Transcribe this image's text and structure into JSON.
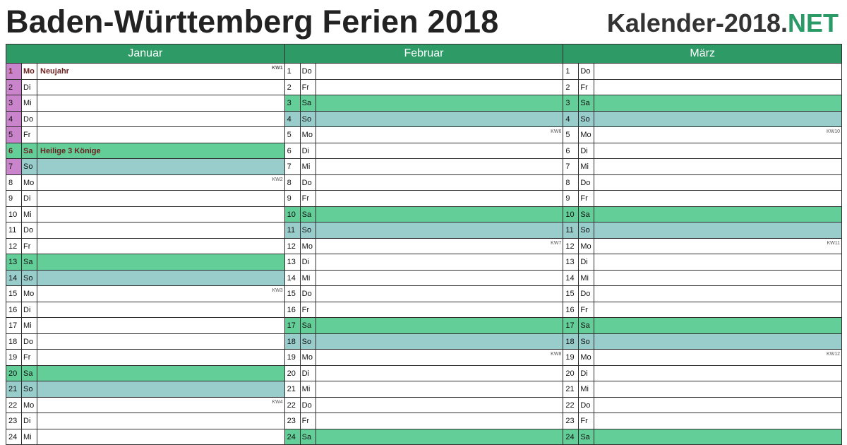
{
  "header": {
    "title": "Baden-Württemberg Ferien 2018",
    "brand_main": "Kalender-2018.",
    "brand_accent": "NET"
  },
  "colors": {
    "header_green": "#2e9a66",
    "saturday": "#64ce98",
    "sunday": "#99cdcb",
    "vacation": "#c984cc",
    "holiday_text": "#6b1f1f"
  },
  "months": [
    {
      "name": "Januar",
      "days": [
        {
          "num": "1",
          "name": "Mo",
          "note": "Neujahr",
          "kw": "KW1",
          "type": "hol",
          "vac": true
        },
        {
          "num": "2",
          "name": "Di",
          "note": "",
          "kw": "",
          "type": "",
          "vac": true
        },
        {
          "num": "3",
          "name": "Mi",
          "note": "",
          "kw": "",
          "type": "",
          "vac": true
        },
        {
          "num": "4",
          "name": "Do",
          "note": "",
          "kw": "",
          "type": "",
          "vac": true
        },
        {
          "num": "5",
          "name": "Fr",
          "note": "",
          "kw": "",
          "type": "",
          "vac": true
        },
        {
          "num": "6",
          "name": "Sa",
          "note": "Heilige 3 Könige",
          "kw": "",
          "type": "sat hol",
          "vac": false
        },
        {
          "num": "7",
          "name": "So",
          "note": "",
          "kw": "",
          "type": "sun",
          "vac": true
        },
        {
          "num": "8",
          "name": "Mo",
          "note": "",
          "kw": "KW2",
          "type": "",
          "vac": false
        },
        {
          "num": "9",
          "name": "Di",
          "note": "",
          "kw": "",
          "type": "",
          "vac": false
        },
        {
          "num": "10",
          "name": "Mi",
          "note": "",
          "kw": "",
          "type": "",
          "vac": false
        },
        {
          "num": "11",
          "name": "Do",
          "note": "",
          "kw": "",
          "type": "",
          "vac": false
        },
        {
          "num": "12",
          "name": "Fr",
          "note": "",
          "kw": "",
          "type": "",
          "vac": false
        },
        {
          "num": "13",
          "name": "Sa",
          "note": "",
          "kw": "",
          "type": "sat",
          "vac": false
        },
        {
          "num": "14",
          "name": "So",
          "note": "",
          "kw": "",
          "type": "sun",
          "vac": false
        },
        {
          "num": "15",
          "name": "Mo",
          "note": "",
          "kw": "KW3",
          "type": "",
          "vac": false
        },
        {
          "num": "16",
          "name": "Di",
          "note": "",
          "kw": "",
          "type": "",
          "vac": false
        },
        {
          "num": "17",
          "name": "Mi",
          "note": "",
          "kw": "",
          "type": "",
          "vac": false
        },
        {
          "num": "18",
          "name": "Do",
          "note": "",
          "kw": "",
          "type": "",
          "vac": false
        },
        {
          "num": "19",
          "name": "Fr",
          "note": "",
          "kw": "",
          "type": "",
          "vac": false
        },
        {
          "num": "20",
          "name": "Sa",
          "note": "",
          "kw": "",
          "type": "sat",
          "vac": false
        },
        {
          "num": "21",
          "name": "So",
          "note": "",
          "kw": "",
          "type": "sun",
          "vac": false
        },
        {
          "num": "22",
          "name": "Mo",
          "note": "",
          "kw": "KW4",
          "type": "",
          "vac": false
        },
        {
          "num": "23",
          "name": "Di",
          "note": "",
          "kw": "",
          "type": "",
          "vac": false
        },
        {
          "num": "24",
          "name": "Mi",
          "note": "",
          "kw": "",
          "type": "",
          "vac": false
        }
      ]
    },
    {
      "name": "Februar",
      "days": [
        {
          "num": "1",
          "name": "Do",
          "note": "",
          "kw": "",
          "type": "",
          "vac": false
        },
        {
          "num": "2",
          "name": "Fr",
          "note": "",
          "kw": "",
          "type": "",
          "vac": false
        },
        {
          "num": "3",
          "name": "Sa",
          "note": "",
          "kw": "",
          "type": "sat",
          "vac": false
        },
        {
          "num": "4",
          "name": "So",
          "note": "",
          "kw": "",
          "type": "sun",
          "vac": false
        },
        {
          "num": "5",
          "name": "Mo",
          "note": "",
          "kw": "KW6",
          "type": "",
          "vac": false
        },
        {
          "num": "6",
          "name": "Di",
          "note": "",
          "kw": "",
          "type": "",
          "vac": false
        },
        {
          "num": "7",
          "name": "Mi",
          "note": "",
          "kw": "",
          "type": "",
          "vac": false
        },
        {
          "num": "8",
          "name": "Do",
          "note": "",
          "kw": "",
          "type": "",
          "vac": false
        },
        {
          "num": "9",
          "name": "Fr",
          "note": "",
          "kw": "",
          "type": "",
          "vac": false
        },
        {
          "num": "10",
          "name": "Sa",
          "note": "",
          "kw": "",
          "type": "sat",
          "vac": false
        },
        {
          "num": "11",
          "name": "So",
          "note": "",
          "kw": "",
          "type": "sun",
          "vac": false
        },
        {
          "num": "12",
          "name": "Mo",
          "note": "",
          "kw": "KW7",
          "type": "",
          "vac": false
        },
        {
          "num": "13",
          "name": "Di",
          "note": "",
          "kw": "",
          "type": "",
          "vac": false
        },
        {
          "num": "14",
          "name": "Mi",
          "note": "",
          "kw": "",
          "type": "",
          "vac": false
        },
        {
          "num": "15",
          "name": "Do",
          "note": "",
          "kw": "",
          "type": "",
          "vac": false
        },
        {
          "num": "16",
          "name": "Fr",
          "note": "",
          "kw": "",
          "type": "",
          "vac": false
        },
        {
          "num": "17",
          "name": "Sa",
          "note": "",
          "kw": "",
          "type": "sat",
          "vac": false
        },
        {
          "num": "18",
          "name": "So",
          "note": "",
          "kw": "",
          "type": "sun",
          "vac": false
        },
        {
          "num": "19",
          "name": "Mo",
          "note": "",
          "kw": "KW8",
          "type": "",
          "vac": false
        },
        {
          "num": "20",
          "name": "Di",
          "note": "",
          "kw": "",
          "type": "",
          "vac": false
        },
        {
          "num": "21",
          "name": "Mi",
          "note": "",
          "kw": "",
          "type": "",
          "vac": false
        },
        {
          "num": "22",
          "name": "Do",
          "note": "",
          "kw": "",
          "type": "",
          "vac": false
        },
        {
          "num": "23",
          "name": "Fr",
          "note": "",
          "kw": "",
          "type": "",
          "vac": false
        },
        {
          "num": "24",
          "name": "Sa",
          "note": "",
          "kw": "",
          "type": "sat",
          "vac": false
        }
      ]
    },
    {
      "name": "März",
      "days": [
        {
          "num": "1",
          "name": "Do",
          "note": "",
          "kw": "",
          "type": "",
          "vac": false
        },
        {
          "num": "2",
          "name": "Fr",
          "note": "",
          "kw": "",
          "type": "",
          "vac": false
        },
        {
          "num": "3",
          "name": "Sa",
          "note": "",
          "kw": "",
          "type": "sat",
          "vac": false
        },
        {
          "num": "4",
          "name": "So",
          "note": "",
          "kw": "",
          "type": "sun",
          "vac": false
        },
        {
          "num": "5",
          "name": "Mo",
          "note": "",
          "kw": "KW10",
          "type": "",
          "vac": false
        },
        {
          "num": "6",
          "name": "Di",
          "note": "",
          "kw": "",
          "type": "",
          "vac": false
        },
        {
          "num": "7",
          "name": "Mi",
          "note": "",
          "kw": "",
          "type": "",
          "vac": false
        },
        {
          "num": "8",
          "name": "Do",
          "note": "",
          "kw": "",
          "type": "",
          "vac": false
        },
        {
          "num": "9",
          "name": "Fr",
          "note": "",
          "kw": "",
          "type": "",
          "vac": false
        },
        {
          "num": "10",
          "name": "Sa",
          "note": "",
          "kw": "",
          "type": "sat",
          "vac": false
        },
        {
          "num": "11",
          "name": "So",
          "note": "",
          "kw": "",
          "type": "sun",
          "vac": false
        },
        {
          "num": "12",
          "name": "Mo",
          "note": "",
          "kw": "KW11",
          "type": "",
          "vac": false
        },
        {
          "num": "13",
          "name": "Di",
          "note": "",
          "kw": "",
          "type": "",
          "vac": false
        },
        {
          "num": "14",
          "name": "Mi",
          "note": "",
          "kw": "",
          "type": "",
          "vac": false
        },
        {
          "num": "15",
          "name": "Do",
          "note": "",
          "kw": "",
          "type": "",
          "vac": false
        },
        {
          "num": "16",
          "name": "Fr",
          "note": "",
          "kw": "",
          "type": "",
          "vac": false
        },
        {
          "num": "17",
          "name": "Sa",
          "note": "",
          "kw": "",
          "type": "sat",
          "vac": false
        },
        {
          "num": "18",
          "name": "So",
          "note": "",
          "kw": "",
          "type": "sun",
          "vac": false
        },
        {
          "num": "19",
          "name": "Mo",
          "note": "",
          "kw": "KW12",
          "type": "",
          "vac": false
        },
        {
          "num": "20",
          "name": "Di",
          "note": "",
          "kw": "",
          "type": "",
          "vac": false
        },
        {
          "num": "21",
          "name": "Mi",
          "note": "",
          "kw": "",
          "type": "",
          "vac": false
        },
        {
          "num": "22",
          "name": "Do",
          "note": "",
          "kw": "",
          "type": "",
          "vac": false
        },
        {
          "num": "23",
          "name": "Fr",
          "note": "",
          "kw": "",
          "type": "",
          "vac": false
        },
        {
          "num": "24",
          "name": "Sa",
          "note": "",
          "kw": "",
          "type": "sat",
          "vac": false
        }
      ]
    }
  ]
}
